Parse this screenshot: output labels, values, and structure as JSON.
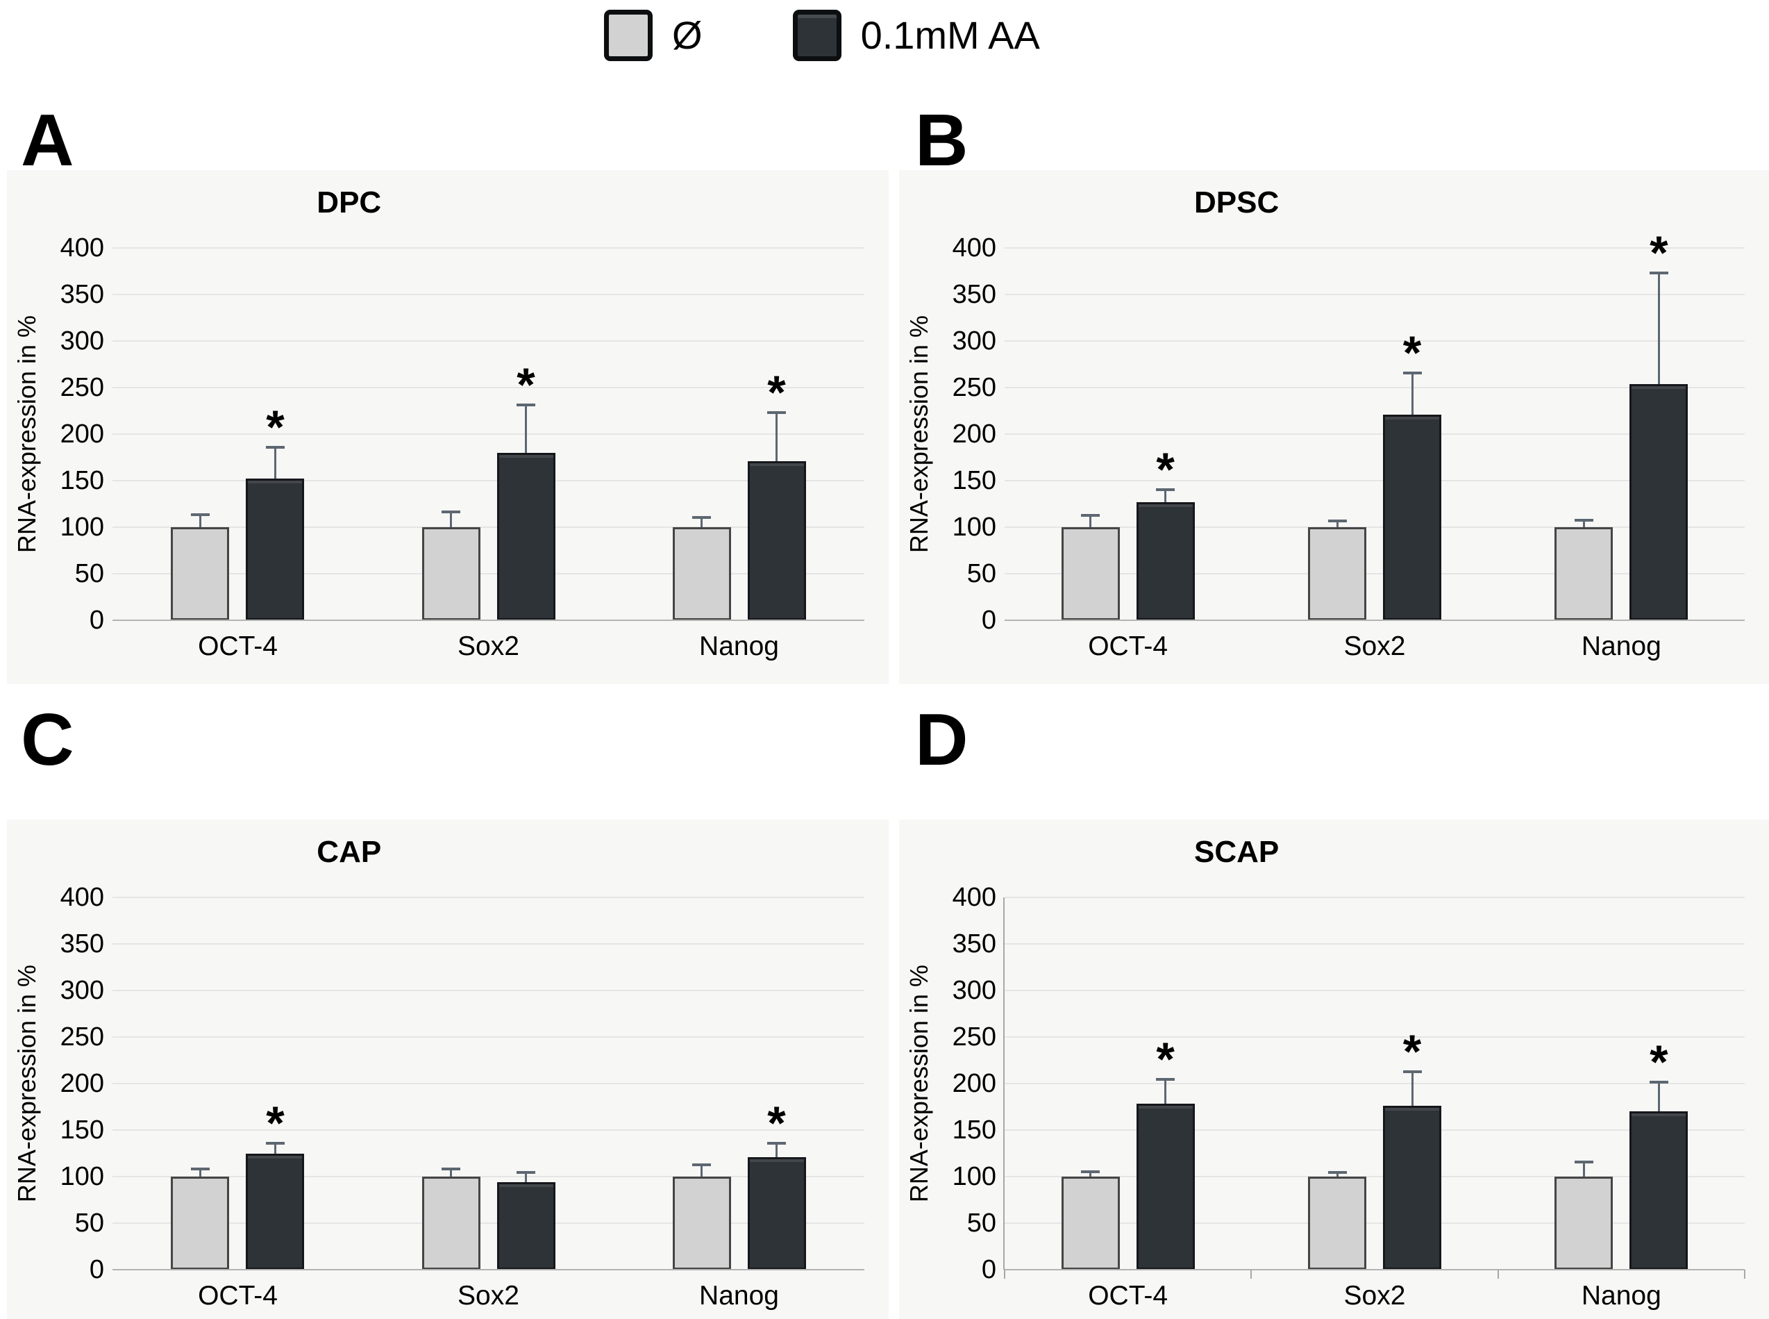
{
  "legend": {
    "items": [
      {
        "label": "Ø",
        "swatch": "control"
      },
      {
        "label": "0.1mM AA",
        "swatch": "treated"
      }
    ]
  },
  "colors": {
    "control_fill": "#d2d2d2",
    "control_border": "#454545",
    "treated_fill": "#2e3338",
    "treated_border": "#15171a",
    "gridline": "#e5e5e5",
    "baseline": "#b3b3b3",
    "error_bar": "#5d6771",
    "panel_background": "#f7f7f6"
  },
  "chart_data": {
    "type": "bar",
    "grouped": true,
    "ylabel": "RNA-expression in %",
    "ylim": [
      0,
      400
    ],
    "ytick_step": 50,
    "grid": true,
    "legend_position": "top-center",
    "categories": [
      "OCT-4",
      "Sox2",
      "Nanog"
    ],
    "panels": [
      {
        "panel": "A",
        "title": "DPC",
        "axis_ticks": false,
        "series": [
          {
            "name": "Ø",
            "values": [
              100,
              100,
              100
            ],
            "errors_upper": [
              12,
              15,
              9
            ],
            "significant": [
              false,
              false,
              false
            ]
          },
          {
            "name": "0.1mM AA",
            "values": [
              152,
              180,
              171
            ],
            "errors_upper": [
              32,
              50,
              51
            ],
            "significant": [
              true,
              true,
              true
            ]
          }
        ]
      },
      {
        "panel": "B",
        "title": "DPSC",
        "axis_ticks": false,
        "series": [
          {
            "name": "Ø",
            "values": [
              100,
              100,
              100
            ],
            "errors_upper": [
              11,
              5,
              6
            ],
            "significant": [
              false,
              false,
              false
            ]
          },
          {
            "name": "0.1mM AA",
            "values": [
              127,
              221,
              254
            ],
            "errors_upper": [
              12,
              43,
              118
            ],
            "significant": [
              true,
              true,
              true
            ]
          }
        ]
      },
      {
        "panel": "C",
        "title": "CAP",
        "axis_ticks": false,
        "series": [
          {
            "name": "Ø",
            "values": [
              100,
              100,
              100
            ],
            "errors_upper": [
              7,
              7,
              11
            ],
            "significant": [
              false,
              false,
              false
            ]
          },
          {
            "name": "0.1mM AA",
            "values": [
              125,
              94,
              121
            ],
            "errors_upper": [
              9,
              9,
              13
            ],
            "significant": [
              true,
              false,
              true
            ]
          }
        ]
      },
      {
        "panel": "D",
        "title": "SCAP",
        "axis_ticks": true,
        "series": [
          {
            "name": "Ø",
            "values": [
              100,
              100,
              100
            ],
            "errors_upper": [
              4,
              3,
              14
            ],
            "significant": [
              false,
              false,
              false
            ]
          },
          {
            "name": "0.1mM AA",
            "values": [
              178,
              176,
              170
            ],
            "errors_upper": [
              25,
              35,
              30
            ],
            "significant": [
              true,
              true,
              true
            ]
          }
        ]
      }
    ]
  }
}
